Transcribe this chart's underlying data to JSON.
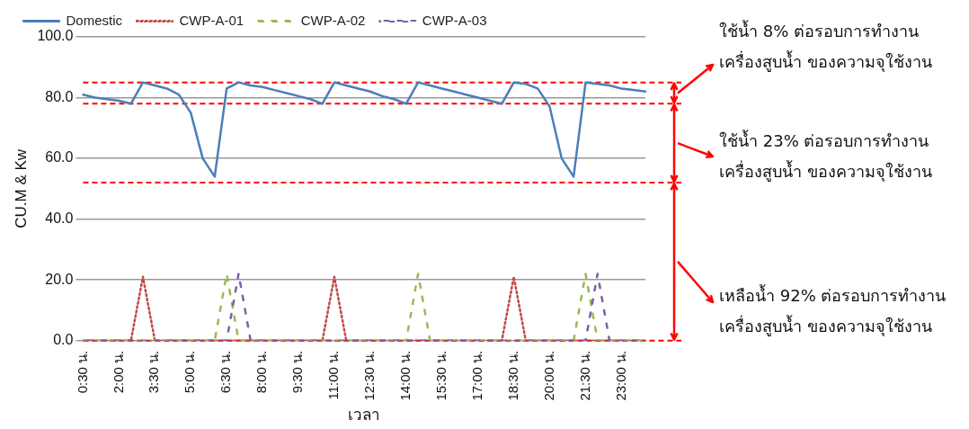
{
  "chart_data": {
    "type": "line",
    "categories": [
      "0:30 น.",
      null,
      null,
      "2:00 น.",
      null,
      null,
      "3:30 น.",
      null,
      null,
      "5:00 น.",
      null,
      null,
      "6:30 น.",
      null,
      null,
      "8:00 น.",
      null,
      null,
      "9:30 น.",
      null,
      null,
      "11:00 น.",
      null,
      null,
      "12:30 น.",
      null,
      null,
      "14:00 น.",
      null,
      null,
      "15:30 น.",
      null,
      null,
      "17:00 น.",
      null,
      null,
      "18:30 น.",
      null,
      null,
      "20:00 น.",
      null,
      null,
      "21:30 น.",
      null,
      null,
      "23:00 น.",
      null,
      null
    ],
    "series": [
      {
        "name": "Domestic",
        "color": "#4a7ebb",
        "line_style": "solid",
        "values": [
          81,
          80,
          79.5,
          79,
          78,
          85,
          84,
          83,
          81,
          75,
          60,
          54,
          83,
          85,
          84,
          83.5,
          82.5,
          81.5,
          80.5,
          79.5,
          78,
          85,
          84,
          83,
          82,
          80.5,
          79.5,
          78,
          85,
          84,
          83,
          82,
          81,
          80,
          79,
          78,
          85,
          84.5,
          83,
          77,
          60,
          54,
          85,
          84.5,
          84,
          83,
          82.5,
          82
        ]
      },
      {
        "name": "CWP-A-01",
        "color": "#be4b48",
        "line_style": "dotted",
        "values": [
          0,
          0,
          0,
          0,
          0,
          21,
          0,
          0,
          0,
          0,
          0,
          0,
          0,
          0,
          0,
          0,
          0,
          0,
          0,
          0,
          0,
          21,
          0,
          0,
          0,
          0,
          0,
          0,
          0,
          0,
          0,
          0,
          0,
          0,
          0,
          0,
          21,
          0,
          0,
          0,
          0,
          0,
          0,
          0,
          0,
          0,
          0,
          0
        ]
      },
      {
        "name": "CWP-A-02",
        "color": "#98b954",
        "line_style": "dashed",
        "values": [
          0,
          0,
          0,
          0,
          0,
          0,
          0,
          0,
          0,
          0,
          0,
          0,
          22,
          0,
          0,
          0,
          0,
          0,
          0,
          0,
          0,
          0,
          0,
          0,
          0,
          0,
          0,
          0,
          22,
          0,
          0,
          0,
          0,
          0,
          0,
          0,
          0,
          0,
          0,
          0,
          0,
          0,
          22,
          0,
          0,
          0,
          0,
          0
        ]
      },
      {
        "name": "CWP-A-03",
        "color": "#7d60a0",
        "line_style": "dashed",
        "values": [
          0,
          0,
          0,
          0,
          0,
          0,
          0,
          0,
          0,
          0,
          0,
          0,
          0,
          22,
          0,
          0,
          0,
          0,
          0,
          0,
          0,
          0,
          0,
          0,
          0,
          0,
          0,
          0,
          0,
          0,
          0,
          0,
          0,
          0,
          0,
          0,
          0,
          0,
          0,
          0,
          0,
          0,
          0,
          22,
          0,
          0,
          0,
          0
        ]
      }
    ],
    "ylim": [
      0,
      100
    ],
    "yticks": [
      {
        "value": 0,
        "label": "0.0"
      },
      {
        "value": 20,
        "label": "20.0"
      },
      {
        "value": 40,
        "label": "40.0"
      },
      {
        "value": 60,
        "label": "60.0"
      },
      {
        "value": 80,
        "label": "80.0"
      },
      {
        "value": 100,
        "label": "100.0"
      }
    ],
    "ylabel": "CU.M & Kw",
    "xlabel": "เวลา",
    "grid": "y",
    "legend": "top",
    "marker": "none",
    "ref_lines": [
      {
        "axis": "y",
        "value": 85,
        "color": "#ff0000",
        "line_style": "dashed"
      },
      {
        "axis": "y",
        "value": 78,
        "color": "#ff0000",
        "line_style": "dashed"
      },
      {
        "axis": "y",
        "value": 52,
        "color": "#ff0000",
        "line_style": "dashed"
      },
      {
        "axis": "y",
        "value": 0,
        "color": "#ff0000",
        "line_style": "dashed"
      }
    ],
    "annotations": [
      "ใช้น้ำ 8% ต่อรอบการทำงาน\nเครื่องสูบน้ำ ของความจุใช้งาน",
      "ใช้น้ำ 23% ต่อรอบการทำงาน\nเครื่องสูบน้ำ ของความจุใช้งาน",
      "เหลือน้ำ 92% ต่อรอบการทำงาน\nเครื่องสูบน้ำ ของความจุใช้งาน"
    ]
  }
}
